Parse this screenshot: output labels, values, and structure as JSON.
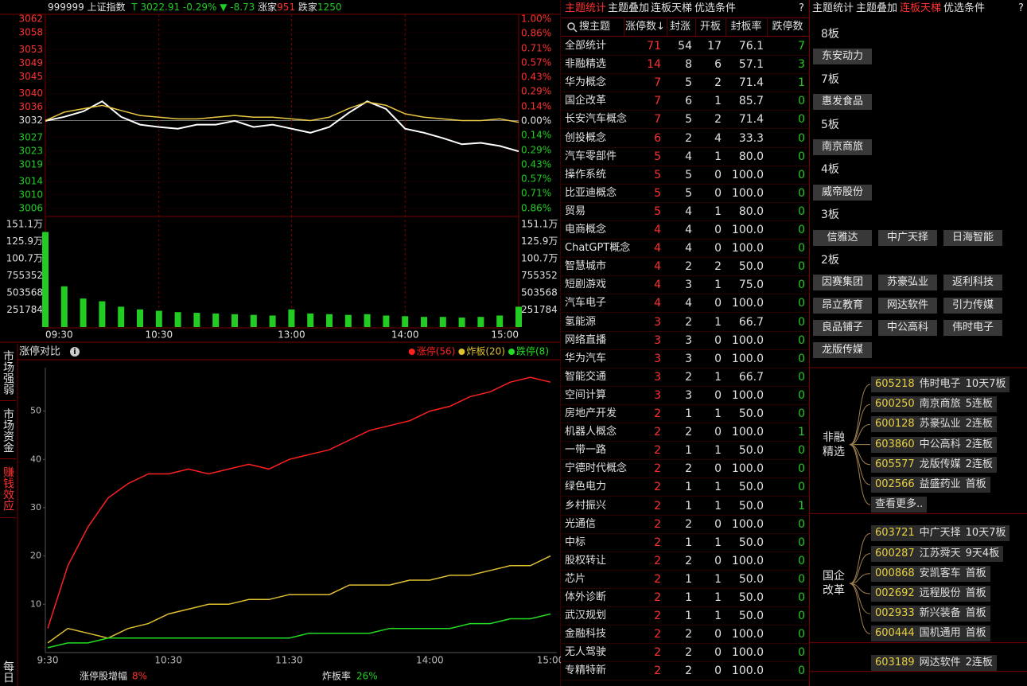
{
  "quote": {
    "code": "999999",
    "name": "上证指数",
    "t": "T",
    "price": "3022.91",
    "pct": "-0.29%",
    "arrow": "▼",
    "change": "-8.73",
    "up_label": "涨家",
    "up": "951",
    "down_label": "跌家",
    "down": "1250"
  },
  "chart_data": [
    {
      "type": "line",
      "x": [
        "09:30",
        "09:40",
        "09:50",
        "10:00",
        "10:10",
        "10:20",
        "10:30",
        "10:40",
        "10:50",
        "11:00",
        "11:10",
        "11:20",
        "11:30",
        "13:00",
        "13:10",
        "13:20",
        "13:30",
        "13:40",
        "13:50",
        "14:00",
        "14:10",
        "14:20",
        "14:30",
        "14:40",
        "14:50",
        "15:00"
      ],
      "xticks": [
        "09:30",
        "10:30",
        "13:00",
        "14:00",
        "15:00"
      ],
      "series": [
        {
          "color": "#ffffff",
          "values": [
            3031.9,
            3033.1,
            3034.7,
            3037.7,
            3033.1,
            3030.8,
            3030.1,
            3029.6,
            3030.8,
            3030.8,
            3031.9,
            3030.1,
            3030.8,
            3029.6,
            3028.4,
            3030.1,
            3034.2,
            3037.7,
            3035.4,
            3029.6,
            3028.4,
            3026.8,
            3025.0,
            3025.4,
            3024.5,
            3022.9
          ]
        },
        {
          "color": "#e8c840",
          "values": [
            3032,
            3034.5,
            3035.5,
            3036.5,
            3035,
            3033.5,
            3033,
            3032.5,
            3032.5,
            3033,
            3033.5,
            3033,
            3033,
            3032.5,
            3032,
            3033,
            3035.5,
            3037.5,
            3036.5,
            3034,
            3033,
            3032.5,
            3032,
            3032,
            3032.5,
            3031.5
          ]
        }
      ],
      "ylim": [
        3006,
        3062
      ],
      "yticks": [
        3062,
        3058,
        3053,
        3049,
        3045,
        3040,
        3036,
        3032,
        3027,
        3023,
        3019,
        3014,
        3010,
        3006
      ],
      "y2lim": [
        -0.86,
        1.0
      ],
      "y2ticks": [
        {
          "value": 1.0,
          "label": "1.00%"
        },
        {
          "value": 0.86,
          "label": "0.86%"
        },
        {
          "value": 0.71,
          "label": "0.71%"
        },
        {
          "value": 0.57,
          "label": "0.57%"
        },
        {
          "value": 0.43,
          "label": "0.43%"
        },
        {
          "value": 0.29,
          "label": "0.29%"
        },
        {
          "value": 0.14,
          "label": "0.14%"
        },
        {
          "value": 0,
          "label": "0.00%"
        },
        {
          "value": -0.14,
          "label": "0.14%"
        },
        {
          "value": -0.29,
          "label": "0.29%"
        },
        {
          "value": -0.43,
          "label": "0.43%"
        },
        {
          "value": -0.57,
          "label": "0.57%"
        },
        {
          "value": -0.71,
          "label": "0.71%"
        },
        {
          "value": -0.86,
          "label": "0.86%"
        }
      ],
      "grid": true
    },
    {
      "type": "bar",
      "color": "#22cc22",
      "values": [
        1400000,
        600000,
        420000,
        380000,
        300000,
        260000,
        240000,
        220000,
        210000,
        200000,
        190000,
        180000,
        170000,
        260000,
        200000,
        190000,
        180000,
        190000,
        170000,
        160000,
        150000,
        150000,
        140000,
        150000,
        170000,
        300000
      ],
      "ylim": [
        0,
        1511000
      ],
      "yticks": [
        {
          "value": 1511000,
          "label": "151.1万"
        },
        {
          "value": 1259000,
          "label": "125.9万"
        },
        {
          "value": 1007000,
          "label": "100.7万"
        },
        755352,
        503568,
        251784
      ]
    },
    {
      "type": "line",
      "title": "涨停对比",
      "x": [
        "09:30",
        "09:40",
        "09:50",
        "10:00",
        "10:10",
        "10:20",
        "10:30",
        "10:40",
        "10:50",
        "11:00",
        "11:10",
        "11:20",
        "11:30",
        "13:00",
        "13:10",
        "13:20",
        "13:30",
        "13:40",
        "13:50",
        "14:00",
        "14:10",
        "14:20",
        "14:30",
        "14:40",
        "14:50",
        "15:00"
      ],
      "xticks": [
        {
          "value": "09:30",
          "label": "9:30"
        },
        "10:30",
        "11:30",
        "14:00",
        "15:00"
      ],
      "series": [
        {
          "name": "涨停(56)",
          "color": "#ff2020",
          "values": [
            5,
            18,
            26,
            32,
            35,
            37,
            37,
            38,
            37,
            38,
            39,
            38,
            40,
            41,
            42,
            44,
            46,
            47,
            48,
            50,
            51,
            53,
            54,
            56,
            57,
            56
          ]
        },
        {
          "name": "炸板(20)",
          "color": "#e0c030",
          "values": [
            2,
            5,
            4,
            3,
            5,
            6,
            8,
            9,
            10,
            10,
            11,
            11,
            12,
            12,
            12,
            14,
            14,
            14,
            15,
            15,
            16,
            16,
            17,
            18,
            18,
            20
          ]
        },
        {
          "name": "跌停(8)",
          "color": "#22dd22",
          "values": [
            1,
            2,
            2,
            3,
            3,
            3,
            3,
            3,
            3,
            3,
            3,
            3,
            3,
            4,
            4,
            4,
            4,
            5,
            5,
            5,
            5,
            6,
            6,
            7,
            7,
            8
          ]
        }
      ],
      "ylim": [
        0,
        59
      ],
      "yticks": [
        10,
        20,
        30,
        40,
        50
      ],
      "legend": "top-right"
    }
  ],
  "side_tabs": [
    "市场强弱",
    "市场资金",
    "赚钱效应",
    "每日"
  ],
  "limit_footer": {
    "growth_label": "涨停股增幅",
    "growth": "8%",
    "burst_label": "炸板率",
    "burst": "26%"
  },
  "theme_table": {
    "tabs": [
      "主题统计",
      "主题叠加",
      "连板天梯",
      "优选条件"
    ],
    "help": "?",
    "search": "搜主题",
    "columns": [
      "涨停数↓",
      "封涨",
      "开板",
      "封板率",
      "跌停数"
    ],
    "rows": [
      [
        "全部统计",
        "71",
        "54",
        "17",
        "76.1",
        "7"
      ],
      [
        "非融精选",
        "14",
        "8",
        "6",
        "57.1",
        "3"
      ],
      [
        "华为概念",
        "7",
        "5",
        "2",
        "71.4",
        "1"
      ],
      [
        "国企改革",
        "7",
        "6",
        "1",
        "85.7",
        "0"
      ],
      [
        "长安汽车概念",
        "7",
        "5",
        "2",
        "71.4",
        "0"
      ],
      [
        "创投概念",
        "6",
        "2",
        "4",
        "33.3",
        "0"
      ],
      [
        "汽车零部件",
        "5",
        "4",
        "1",
        "80.0",
        "0"
      ],
      [
        "操作系统",
        "5",
        "5",
        "0",
        "100.0",
        "0"
      ],
      [
        "比亚迪概念",
        "5",
        "5",
        "0",
        "100.0",
        "0"
      ],
      [
        "贸易",
        "5",
        "4",
        "1",
        "80.0",
        "0"
      ],
      [
        "电商概念",
        "4",
        "4",
        "0",
        "100.0",
        "0"
      ],
      [
        "ChatGPT概念",
        "4",
        "4",
        "0",
        "100.0",
        "0"
      ],
      [
        "智慧城市",
        "4",
        "2",
        "2",
        "50.0",
        "0"
      ],
      [
        "短剧游戏",
        "4",
        "3",
        "1",
        "75.0",
        "0"
      ],
      [
        "汽车电子",
        "4",
        "4",
        "0",
        "100.0",
        "0"
      ],
      [
        "氢能源",
        "3",
        "2",
        "1",
        "66.7",
        "0"
      ],
      [
        "网络直播",
        "3",
        "3",
        "0",
        "100.0",
        "0"
      ],
      [
        "华为汽车",
        "3",
        "3",
        "0",
        "100.0",
        "0"
      ],
      [
        "智能交通",
        "3",
        "2",
        "1",
        "66.7",
        "0"
      ],
      [
        "空间计算",
        "3",
        "3",
        "0",
        "100.0",
        "0"
      ],
      [
        "房地产开发",
        "2",
        "1",
        "1",
        "50.0",
        "0"
      ],
      [
        "机器人概念",
        "2",
        "2",
        "0",
        "100.0",
        "1"
      ],
      [
        "一带一路",
        "2",
        "1",
        "1",
        "50.0",
        "0"
      ],
      [
        "宁德时代概念",
        "2",
        "2",
        "0",
        "100.0",
        "0"
      ],
      [
        "绿色电力",
        "2",
        "1",
        "1",
        "50.0",
        "0"
      ],
      [
        "乡村振兴",
        "2",
        "1",
        "1",
        "50.0",
        "1"
      ],
      [
        "光通信",
        "2",
        "2",
        "0",
        "100.0",
        "0"
      ],
      [
        "中标",
        "2",
        "1",
        "1",
        "50.0",
        "0"
      ],
      [
        "股权转让",
        "2",
        "2",
        "0",
        "100.0",
        "0"
      ],
      [
        "芯片",
        "2",
        "1",
        "1",
        "50.0",
        "0"
      ],
      [
        "体外诊断",
        "2",
        "1",
        "1",
        "50.0",
        "0"
      ],
      [
        "武汉规划",
        "2",
        "1",
        "1",
        "50.0",
        "0"
      ],
      [
        "金融科技",
        "2",
        "2",
        "0",
        "100.0",
        "0"
      ],
      [
        "无人驾驶",
        "2",
        "2",
        "0",
        "100.0",
        "0"
      ],
      [
        "专精特新",
        "2",
        "2",
        "0",
        "100.0",
        "0"
      ]
    ]
  },
  "ladder": {
    "tabs": [
      "主题统计",
      "主题叠加",
      "连板天梯",
      "优选条件"
    ],
    "help": "?",
    "levels": [
      {
        "label": "8板",
        "stocks": [
          "东安动力"
        ]
      },
      {
        "label": "7板",
        "stocks": [
          "惠发食品"
        ]
      },
      {
        "label": "5板",
        "stocks": [
          "南京商旅"
        ]
      },
      {
        "label": "4板",
        "stocks": [
          "威帝股份"
        ]
      },
      {
        "label": "3板",
        "stocks": [
          "信雅达",
          "中广天择",
          "日海智能"
        ]
      },
      {
        "label": "2板",
        "stocks": [
          "因赛集团",
          "苏豪弘业",
          "返利科技",
          "昂立教育",
          "网达软件",
          "引力传媒",
          "良品铺子",
          "中公高科",
          "伟时电子",
          "龙版传媒"
        ]
      }
    ]
  },
  "groups": [
    {
      "label": "非融精选",
      "items": [
        {
          "code": "605218",
          "name": "伟时电子",
          "tag": "10天7板"
        },
        {
          "code": "600250",
          "name": "南京商旅",
          "tag": "5连板"
        },
        {
          "code": "600128",
          "name": "苏豪弘业",
          "tag": "2连板"
        },
        {
          "code": "603860",
          "name": "中公高科",
          "tag": "2连板"
        },
        {
          "code": "605577",
          "name": "龙版传媒",
          "tag": "2连板"
        },
        {
          "code": "002566",
          "name": "益盛药业",
          "tag": "首板"
        }
      ],
      "more": "查看更多.."
    },
    {
      "label": "国企改革",
      "items": [
        {
          "code": "603721",
          "name": "中广天择",
          "tag": "10天7板"
        },
        {
          "code": "600287",
          "name": "江苏舜天",
          "tag": "9天4板"
        },
        {
          "code": "000868",
          "name": "安凯客车",
          "tag": "首板"
        },
        {
          "code": "002692",
          "name": "远程股份",
          "tag": "首板"
        },
        {
          "code": "002933",
          "name": "新兴装备",
          "tag": "首板"
        },
        {
          "code": "600444",
          "name": "国机通用",
          "tag": "首板"
        }
      ]
    },
    {
      "items": [
        {
          "code": "603189",
          "name": "网达软件",
          "tag": "2连板"
        }
      ]
    }
  ]
}
